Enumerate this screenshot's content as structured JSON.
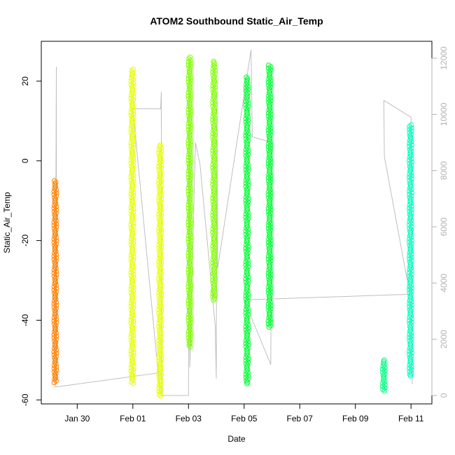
{
  "chart_data": {
    "type": "scatter",
    "title": "ATOM2 Southbound Static_Air_Temp",
    "xlabel": "Date",
    "ylabel": "Static_Air_Temp",
    "x_ticks": [
      "Jan 30",
      "Feb 01",
      "Feb 03",
      "Feb 05",
      "Feb 07",
      "Feb 09",
      "Feb 11"
    ],
    "y_ticks": [
      -60,
      -40,
      -20,
      0,
      20
    ],
    "y2_ticks": [
      0,
      2000,
      4000,
      6000,
      8000,
      10000,
      12000
    ],
    "ylim": [
      -61,
      30
    ],
    "y2lim": [
      -300,
      12600
    ],
    "xlim": [
      "2023-01-28T17:00",
      "2023-02-11T18:00"
    ],
    "series": [
      {
        "color": "#FF8000",
        "columns": [
          {
            "x": "2023-01-29T05:00",
            "y_min": -56,
            "y_max": -5
          }
        ]
      },
      {
        "color": "#E6FF00",
        "columns": [
          {
            "x": "2023-01-31T23:30",
            "y_min": -56,
            "y_max": 23
          },
          {
            "x": "2023-02-01T23:30",
            "y_min": -59,
            "y_max": 4
          }
        ]
      },
      {
        "color": "#80FF00",
        "columns": [
          {
            "x": "2023-02-03T01:00",
            "y_min": -47,
            "y_max": 26
          },
          {
            "x": "2023-02-03T22:00",
            "y_min": -35,
            "y_max": 25
          }
        ]
      },
      {
        "color": "#00FF33",
        "columns": [
          {
            "x": "2023-02-05T02:30",
            "y_min": -56,
            "y_max": 21
          },
          {
            "x": "2023-02-05T22:00",
            "y_min": -42,
            "y_max": 24
          }
        ]
      },
      {
        "color": "#00FF80",
        "columns": [
          {
            "x": "2023-02-10T00:30",
            "y_min": -58,
            "y_max": -50
          }
        ]
      },
      {
        "color": "#00FFBF",
        "columns": [
          {
            "x": "2023-02-10T23:30",
            "y_min": -54,
            "y_max": 9
          }
        ]
      }
    ],
    "secondary_line": {
      "color": "#bfbfbf",
      "axis": "right",
      "points": [
        [
          "2023-01-29T06:00",
          400
        ],
        [
          "2023-01-29T06:00",
          11700
        ],
        [
          "2023-01-29T05:00",
          300
        ],
        [
          "2023-02-01T22:00",
          800
        ],
        [
          "2023-02-01T23:00",
          300
        ],
        [
          "2023-02-01T00:00",
          10200
        ],
        [
          "2023-02-02T00:00",
          10200
        ],
        [
          "2023-02-02T00:30",
          10800
        ],
        [
          "2023-02-02T01:00",
          0
        ],
        [
          "2023-02-02T06:00",
          0
        ],
        [
          "2023-02-03T00:00",
          0
        ],
        [
          "2023-02-03T00:40",
          12000
        ],
        [
          "2023-02-03T01:10",
          1000
        ],
        [
          "2023-02-03T06:00",
          9000
        ],
        [
          "2023-02-03T10:00",
          8200
        ],
        [
          "2023-02-03T23:00",
          2500
        ],
        [
          "2023-02-04T00:00",
          600
        ],
        [
          "2023-02-04T00:30",
          10700
        ],
        [
          "2023-02-04T01:00",
          4500
        ],
        [
          "2023-02-05T06:00",
          12300
        ],
        [
          "2023-02-05T07:00",
          9200
        ],
        [
          "2023-02-06T00:00",
          9000
        ],
        [
          "2023-02-05T23:00",
          1100
        ],
        [
          "2023-02-05T00:00",
          3400
        ],
        [
          "2023-02-10T23:00",
          3600
        ],
        [
          "2023-02-10T01:00",
          8500
        ],
        [
          "2023-02-10T00:30",
          10500
        ],
        [
          "2023-02-11T00:00",
          9900
        ],
        [
          "2023-02-11T01:00",
          400
        ]
      ]
    },
    "grid": false,
    "legend": "none"
  }
}
